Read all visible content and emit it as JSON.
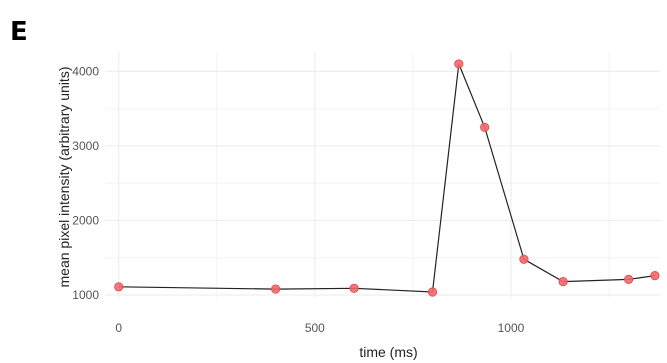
{
  "panel_label": "E",
  "chart_data": {
    "type": "line",
    "xlabel": "time (ms)",
    "ylabel": "mean pixel intensity (arbitrary units)",
    "xlim": [
      -35,
      1380
    ],
    "ylim": [
      960,
      4260
    ],
    "x_ticks": [
      0,
      500,
      1000
    ],
    "x_tick_labels": [
      "0",
      "500",
      "1000"
    ],
    "y_ticks": [
      1000,
      2000,
      3000,
      4000
    ],
    "y_tick_labels": [
      "1000",
      "2000",
      "3000",
      "4000"
    ],
    "grid": true,
    "point_color": "#f0686a",
    "line_color": "#222222",
    "series": [
      {
        "x": [
          0,
          400,
          600,
          800,
          867,
          933,
          1033,
          1133,
          1300,
          1367
        ],
        "y": [
          1110,
          1080,
          1090,
          1040,
          4100,
          3250,
          1480,
          1180,
          1210,
          1260
        ]
      }
    ]
  }
}
